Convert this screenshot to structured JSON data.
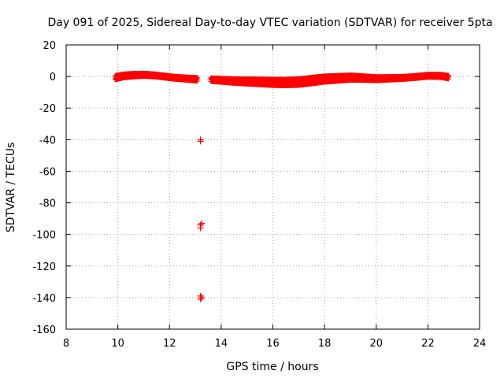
{
  "chart_data": {
    "type": "scatter",
    "title": "Day 091 of 2025, Sidereal Day-to-day VTEC variation (SDTVAR) for receiver 5pta",
    "xlabel": "GPS time / hours",
    "ylabel": "SDTVAR / TECUs",
    "xlim": [
      8,
      24
    ],
    "ylim": [
      -160,
      20
    ],
    "xticks": [
      8,
      10,
      12,
      14,
      16,
      18,
      20,
      22,
      24
    ],
    "yticks": [
      20,
      0,
      -20,
      -40,
      -60,
      -80,
      -100,
      -120,
      -140,
      -160
    ],
    "grid": true,
    "marker": "+",
    "series": [
      {
        "name": "SDTVAR",
        "color": "#ff0000",
        "band": [
          {
            "x": 9.9,
            "y": -0.5
          },
          {
            "x": 10.2,
            "y": 0.5
          },
          {
            "x": 10.6,
            "y": 1.0
          },
          {
            "x": 11.0,
            "y": 1.2
          },
          {
            "x": 11.4,
            "y": 0.8
          },
          {
            "x": 11.8,
            "y": 0.0
          },
          {
            "x": 12.2,
            "y": -0.8
          },
          {
            "x": 12.6,
            "y": -1.3
          },
          {
            "x": 13.0,
            "y": -1.8
          },
          {
            "x": 13.5,
            "y": -2.0
          },
          {
            "x": 14.0,
            "y": -2.5
          },
          {
            "x": 14.5,
            "y": -3.0
          },
          {
            "x": 15.0,
            "y": -3.3
          },
          {
            "x": 15.5,
            "y": -3.5
          },
          {
            "x": 16.0,
            "y": -3.8
          },
          {
            "x": 16.5,
            "y": -3.8
          },
          {
            "x": 17.0,
            "y": -3.5
          },
          {
            "x": 17.5,
            "y": -2.5
          },
          {
            "x": 18.0,
            "y": -1.5
          },
          {
            "x": 18.5,
            "y": -1.0
          },
          {
            "x": 19.0,
            "y": -0.5
          },
          {
            "x": 19.5,
            "y": -0.8
          },
          {
            "x": 20.0,
            "y": -1.2
          },
          {
            "x": 20.5,
            "y": -1.0
          },
          {
            "x": 21.0,
            "y": -0.8
          },
          {
            "x": 21.5,
            "y": -0.3
          },
          {
            "x": 22.0,
            "y": 0.5
          },
          {
            "x": 22.5,
            "y": 0.3
          },
          {
            "x": 22.8,
            "y": -0.5
          }
        ],
        "gap": [
          13.1,
          13.6
        ],
        "outliers": [
          {
            "x": 13.2,
            "y": -41
          },
          {
            "x": 13.2,
            "y": -40
          },
          {
            "x": 13.2,
            "y": -94
          },
          {
            "x": 13.2,
            "y": -96
          },
          {
            "x": 13.25,
            "y": -93
          },
          {
            "x": 13.2,
            "y": -139
          },
          {
            "x": 13.2,
            "y": -141
          },
          {
            "x": 13.25,
            "y": -140
          }
        ]
      }
    ]
  }
}
